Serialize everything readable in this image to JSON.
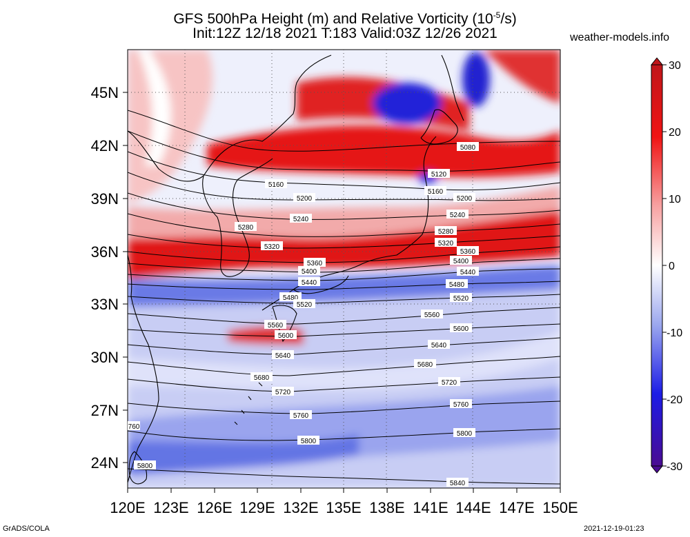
{
  "title": {
    "line1": "GFS 500hPa Height (m) and Relative Vorticity (10",
    "line1_sup": "-5",
    "line1_end": "/s)",
    "line2": "Init:12Z 12/18 2021 T:183 Valid:03Z 12/26 2021"
  },
  "site": "weather-models.info",
  "footer": {
    "left": "GrADS/COLA",
    "right": "2021-12-19-01:23"
  },
  "map": {
    "lon_labels": [
      "120E",
      "123E",
      "126E",
      "129E",
      "132E",
      "135E",
      "138E",
      "141E",
      "144E",
      "147E",
      "150E"
    ],
    "lat_labels": [
      "45N",
      "42N",
      "39N",
      "36N",
      "33N",
      "30N",
      "27N",
      "24N"
    ],
    "colorbar_labels": [
      "30",
      "20",
      "10",
      "0",
      "-10",
      "-20",
      "-30"
    ],
    "contours": [
      "5080",
      "5120",
      "5160",
      "5200",
      "5240",
      "5280",
      "5320",
      "5360",
      "5400",
      "5440",
      "5480",
      "5520",
      "5560",
      "5600",
      "5640",
      "5680",
      "5720",
      "5760",
      "5800",
      "5840"
    ]
  }
}
